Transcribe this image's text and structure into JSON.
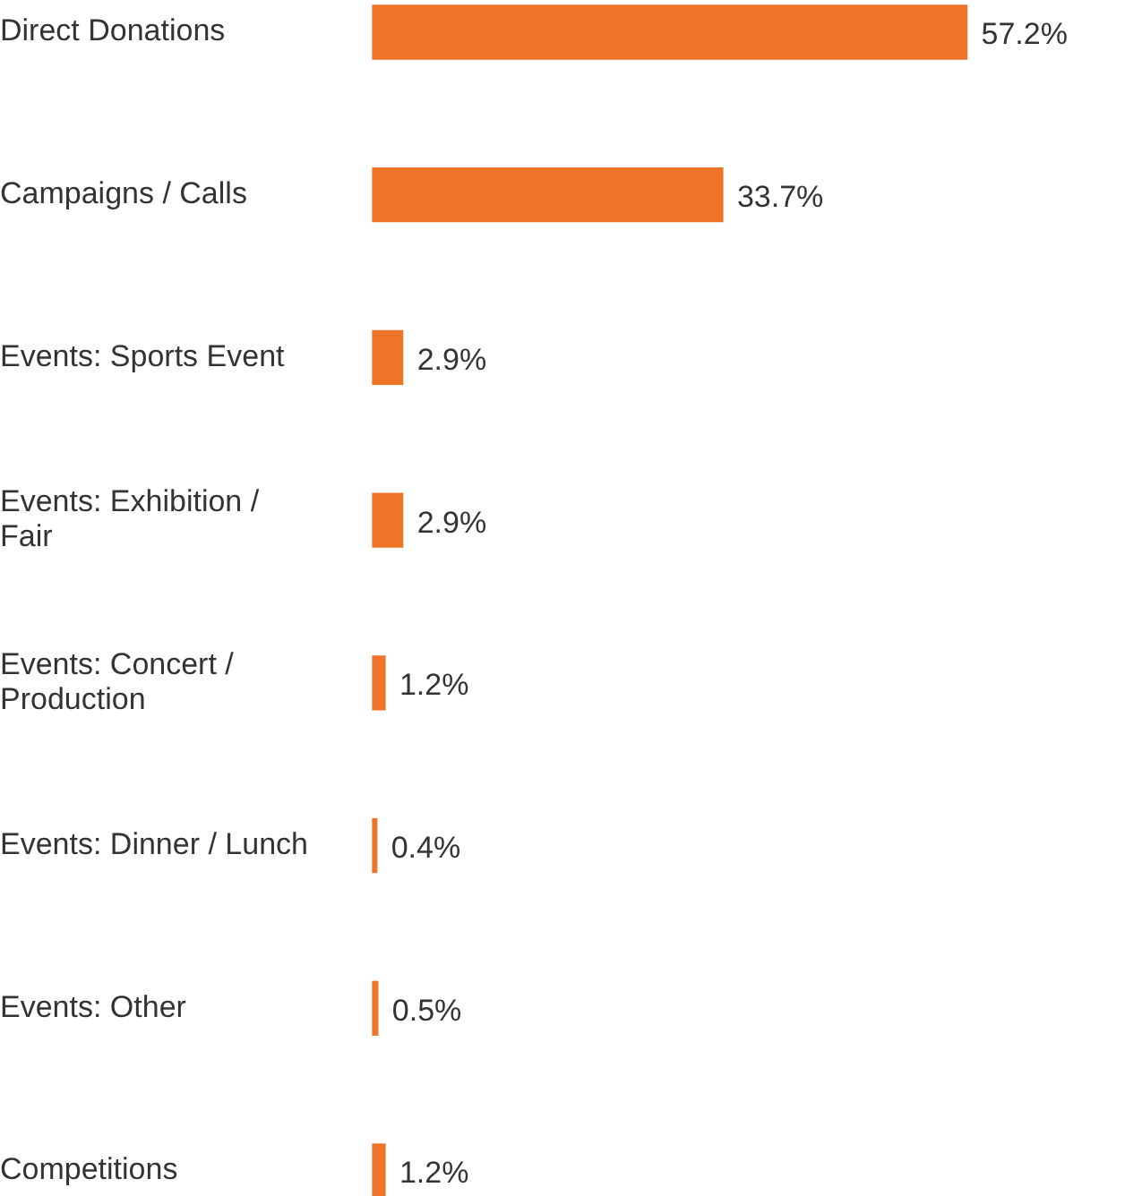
{
  "chart_data": {
    "type": "bar",
    "orientation": "horizontal",
    "categories": [
      "Direct Donations",
      "Campaigns / Calls",
      "Events: Sports Event",
      "Events: Exhibition / Fair",
      "Events: Concert / Production",
      "Events: Dinner / Lunch",
      "Events: Other",
      "Competitions"
    ],
    "values": [
      57.2,
      33.7,
      2.9,
      2.9,
      1.2,
      0.4,
      0.5,
      1.2
    ],
    "value_labels": [
      "57.2%",
      "33.7%",
      "2.9%",
      "2.9%",
      "1.2%",
      "0.4%",
      "0.5%",
      "1.2%"
    ],
    "color": "#f07427",
    "grid": false,
    "legend": false,
    "tick_labels": "y"
  }
}
